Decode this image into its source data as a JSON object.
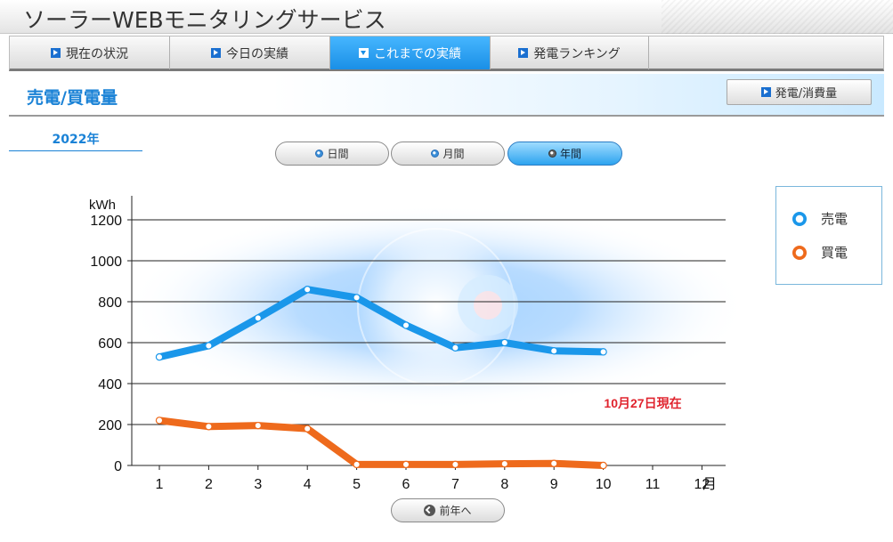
{
  "header": {
    "title": "ソーラーWEBモニタリングサービス"
  },
  "nav": {
    "tabs": [
      {
        "label": "現在の状況"
      },
      {
        "label": "今日の実績"
      },
      {
        "label": "これまでの実績"
      },
      {
        "label": "発電ランキング"
      }
    ]
  },
  "section": {
    "title": "売電/買電量",
    "switch_label": "発電/消費量"
  },
  "period": {
    "year_label": "2022年",
    "buttons": [
      {
        "label": "日間"
      },
      {
        "label": "月間"
      },
      {
        "label": "年間"
      }
    ]
  },
  "legend": {
    "items": [
      {
        "label": "売電",
        "color": "#1a97ea"
      },
      {
        "label": "買電",
        "color": "#ee6a1c"
      }
    ]
  },
  "chart_data": {
    "type": "line",
    "ylabel": "kWh",
    "x_unit": "月",
    "ylim": [
      0,
      1200
    ],
    "yticks": [
      0,
      200,
      400,
      600,
      800,
      1000,
      1200
    ],
    "categories": [
      "1",
      "2",
      "3",
      "4",
      "5",
      "6",
      "7",
      "8",
      "9",
      "10",
      "11",
      "12"
    ],
    "series": [
      {
        "name": "売電",
        "color": "#1a97ea",
        "values": [
          530,
          585,
          720,
          860,
          820,
          685,
          575,
          600,
          560,
          555,
          null,
          null
        ]
      },
      {
        "name": "買電",
        "color": "#ee6a1c",
        "values": [
          220,
          190,
          195,
          180,
          5,
          5,
          5,
          8,
          10,
          0,
          null,
          null
        ]
      }
    ],
    "annotation": "10月27日現在",
    "grid": true,
    "legend_position": "right"
  },
  "footer": {
    "prev_label": "前年へ"
  }
}
